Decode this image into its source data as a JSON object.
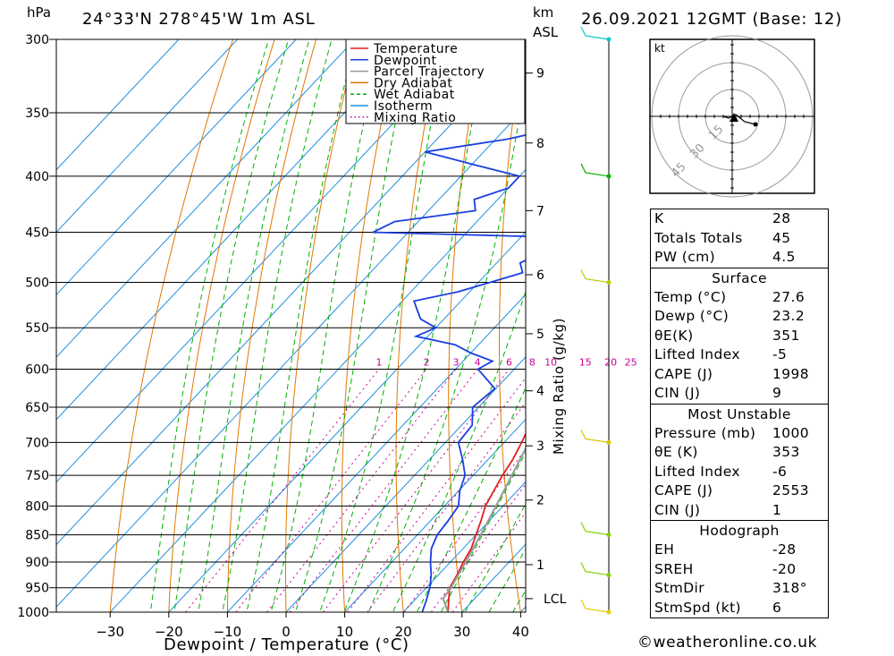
{
  "header": {
    "pressure_unit": "hPa",
    "location": "24°33'N  278°45'W  1m  ASL",
    "alt_unit_top": "km",
    "alt_unit_bottom": "ASL",
    "datetime": "26.09.2021  12GMT  (Base: 12)"
  },
  "chart_data": {
    "type": "line",
    "xlabel": "Dewpoint / Temperature (°C)",
    "y2label": "Mixing Ratio (g/kg)",
    "x_ticks": [
      -30,
      -20,
      -10,
      0,
      10,
      20,
      30,
      40
    ],
    "x_range": [
      -40,
      40
    ],
    "y_range": [
      1000,
      300
    ],
    "pressure_levels": [
      300,
      350,
      400,
      450,
      500,
      550,
      600,
      650,
      700,
      750,
      800,
      850,
      900,
      950,
      1000
    ],
    "height_ticks": [
      {
        "label": "9",
        "p": 322
      },
      {
        "label": "8",
        "p": 373
      },
      {
        "label": "7",
        "p": 430
      },
      {
        "label": "6",
        "p": 492
      },
      {
        "label": "5",
        "p": 557
      },
      {
        "label": "4",
        "p": 628
      },
      {
        "label": "3",
        "p": 705
      },
      {
        "label": "2",
        "p": 790
      },
      {
        "label": "1",
        "p": 905
      }
    ],
    "lcl": {
      "label": "LCL",
      "p": 972
    },
    "mixing_ratio_labels": [
      "1",
      "2",
      "3",
      "4",
      "6",
      "8",
      "10",
      "15",
      "20",
      "25"
    ],
    "mixing_ratio_values": [
      1,
      2,
      3,
      4,
      6,
      8,
      10,
      15,
      20,
      25
    ],
    "legend": [
      {
        "name": "Temperature",
        "color": "#e02020",
        "style": "solid"
      },
      {
        "name": "Dewpoint",
        "color": "#1a3fe0",
        "style": "solid"
      },
      {
        "name": "Parcel Trajectory",
        "color": "#999999",
        "style": "solid"
      },
      {
        "name": "Dry Adiabat",
        "color": "#e07800",
        "style": "solid"
      },
      {
        "name": "Wet Adiabat",
        "color": "#00b000",
        "style": "dashed"
      },
      {
        "name": "Isotherm",
        "color": "#1e90e0",
        "style": "solid"
      },
      {
        "name": "Mixing Ratio",
        "color": "#cc0099",
        "style": "dotted"
      }
    ],
    "series": [
      {
        "name": "Temperature",
        "p": [
          1000,
          975,
          950,
          925,
          900,
          875,
          850,
          825,
          800,
          775,
          750,
          725,
          700,
          675,
          650,
          625,
          600,
          575,
          550,
          525,
          500,
          475,
          450,
          425,
          400,
          375,
          350,
          325,
          300
        ],
        "values": [
          27.6,
          25.8,
          24.0,
          23.2,
          22.2,
          21.4,
          20.0,
          18.6,
          17.0,
          16.0,
          15.0,
          14.2,
          13.0,
          11.6,
          10.0,
          8.6,
          7.2,
          5.4,
          3.4,
          1.4,
          -1.2,
          -3.8,
          -6.6,
          -9.4,
          -13.0,
          -16.6,
          -21.0,
          -25.6,
          -31.0
        ]
      },
      {
        "name": "Dewpoint",
        "p": [
          1000,
          975,
          950,
          925,
          900,
          875,
          850,
          825,
          800,
          775,
          750,
          725,
          700,
          675,
          650,
          625,
          600,
          590,
          580,
          570,
          560,
          550,
          540,
          530,
          520,
          510,
          500,
          490,
          480,
          470,
          460,
          455,
          450,
          440,
          430,
          420,
          410,
          400,
          390,
          380,
          370,
          360,
          350,
          340,
          330,
          320,
          310,
          305,
          300
        ],
        "values": [
          23.2,
          22.0,
          20.6,
          18.8,
          16.6,
          14.6,
          13.4,
          13.0,
          12.4,
          10.2,
          8.6,
          5.6,
          2.2,
          1.8,
          -1.0,
          -0.2,
          -6.2,
          -5.0,
          -10.0,
          -14.0,
          -22.0,
          -20.0,
          -24.0,
          -26.0,
          -28.0,
          -22.0,
          -18.0,
          -14.0,
          -16.0,
          -14.0,
          -10.0,
          -12.0,
          -46.0,
          -44.0,
          -32.0,
          -34.0,
          -30.0,
          -30.0,
          -40.0,
          -50.0,
          -38.0,
          -30.0,
          -30.0,
          -32.0,
          -28.0,
          -30.0,
          -32.0,
          -28.0,
          -26.0
        ]
      },
      {
        "name": "Parcel Trajectory",
        "p": [
          1000,
          972,
          950,
          900,
          850,
          800,
          750,
          700,
          650,
          600,
          550,
          500,
          450,
          400,
          370
        ],
        "values": [
          27.6,
          24.6,
          24.2,
          22.6,
          20.8,
          18.8,
          16.6,
          14.2,
          11.4,
          8.4,
          4.8,
          0.4,
          -5.0,
          -12.0,
          -17.0
        ]
      }
    ],
    "wind_barbs": [
      {
        "p": 300,
        "color": "#00c8c8"
      },
      {
        "p": 400,
        "color": "#00b000"
      },
      {
        "p": 500,
        "color": "#b8c800"
      },
      {
        "p": 700,
        "color": "#d8c800"
      },
      {
        "p": 850,
        "color": "#80d000"
      },
      {
        "p": 925,
        "color": "#80d000"
      },
      {
        "p": 1000,
        "color": "#e0d000"
      }
    ],
    "hodograph": {
      "unit": "kt",
      "ring_labels": [
        "15",
        "30",
        "45"
      ]
    }
  },
  "indices": [
    {
      "label": "K",
      "value": "28"
    },
    {
      "label": "Totals Totals",
      "value": "45"
    },
    {
      "label": "PW (cm)",
      "value": "4.5"
    }
  ],
  "surface": {
    "title": "Surface",
    "rows": [
      {
        "label": "Temp (°C)",
        "value": "27.6"
      },
      {
        "label": "Dewp (°C)",
        "value": "23.2"
      },
      {
        "label": "θE(K)",
        "value": "351"
      },
      {
        "label": "Lifted Index",
        "value": "-5"
      },
      {
        "label": "CAPE (J)",
        "value": "1998"
      },
      {
        "label": "CIN (J)",
        "value": "9"
      }
    ]
  },
  "most_unstable": {
    "title": "Most Unstable",
    "rows": [
      {
        "label": "Pressure (mb)",
        "value": "1000"
      },
      {
        "label": "θE (K)",
        "value": "353"
      },
      {
        "label": "Lifted Index",
        "value": "-6"
      },
      {
        "label": "CAPE (J)",
        "value": "2553"
      },
      {
        "label": "CIN (J)",
        "value": "1"
      }
    ]
  },
  "hodograph_table": {
    "title": "Hodograph",
    "rows": [
      {
        "label": "EH",
        "value": "-28"
      },
      {
        "label": "SREH",
        "value": "-20"
      },
      {
        "label": "StmDir",
        "value": "318°"
      },
      {
        "label": "StmSpd (kt)",
        "value": "6"
      }
    ]
  },
  "credit": "©weatheronline.co.uk"
}
